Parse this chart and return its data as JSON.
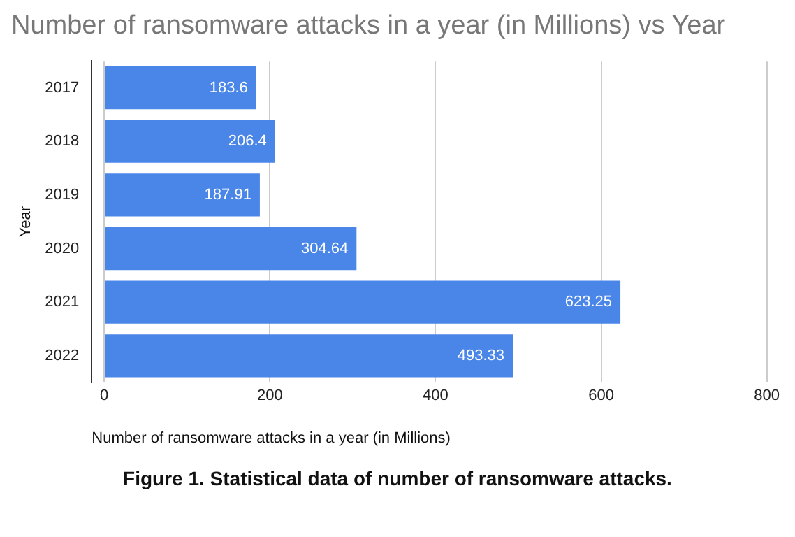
{
  "chart_data": {
    "type": "bar",
    "orientation": "horizontal",
    "title": "Number of ransomware attacks in a year (in Millions)  vs Year",
    "xlabel": "Number of ransomware attacks in a year (in Millions)",
    "ylabel": "Year",
    "categories": [
      "2017",
      "2018",
      "2019",
      "2020",
      "2021",
      "2022"
    ],
    "values": [
      183.6,
      206.4,
      187.91,
      304.64,
      623.25,
      493.33
    ],
    "value_labels": [
      "183.6",
      "206.4",
      "187.91",
      "304.64",
      "623.25",
      "493.33"
    ],
    "color": "#4a86e8",
    "xlim": [
      -15,
      800
    ],
    "xticks": [
      0,
      200,
      400,
      600,
      800
    ],
    "grid": "x",
    "annotations": [
      "Figure 1. Statistical data of number of ransomware attacks."
    ]
  }
}
